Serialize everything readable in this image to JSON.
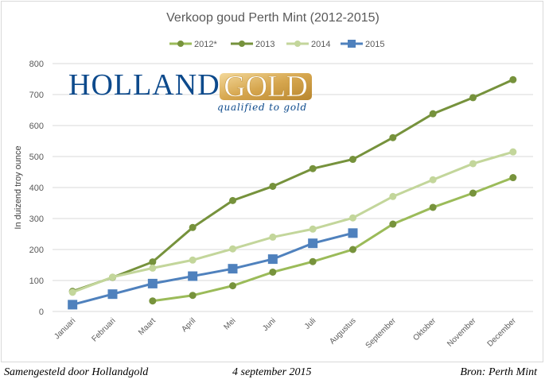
{
  "chart_data": {
    "type": "line",
    "title": "Verkoop goud Perth Mint (2012-2015)",
    "xlabel": "",
    "ylabel": "In duizend troy ounce",
    "ylim": [
      0,
      800
    ],
    "yticks": [
      0,
      100,
      200,
      300,
      400,
      500,
      600,
      700,
      800
    ],
    "grid": true,
    "legend_position": "top",
    "categories": [
      "Januari",
      "Februari",
      "Maart",
      "April",
      "Mei",
      "Juni",
      "Juli",
      "Augustus",
      "September",
      "Oktober",
      "November",
      "December"
    ],
    "series": [
      {
        "name": "2012*",
        "color": "#9bbb59",
        "marker_color": "#77933c",
        "marker": "circle",
        "values": [
          null,
          null,
          34,
          52,
          83,
          127,
          161,
          200,
          282,
          336,
          382,
          432
        ]
      },
      {
        "name": "2013",
        "color": "#76923c",
        "marker_color": "#76923c",
        "marker": "circle",
        "values": [
          65,
          110,
          160,
          271,
          358,
          404,
          461,
          491,
          561,
          638,
          690,
          748
        ]
      },
      {
        "name": "2014",
        "color": "#c3d69b",
        "marker_color": "#c3d69b",
        "marker": "circle",
        "values": [
          62,
          111,
          140,
          166,
          202,
          240,
          266,
          302,
          371,
          425,
          477,
          515
        ]
      },
      {
        "name": "2015",
        "color": "#4f81bd",
        "marker_color": "#4f81bd",
        "marker": "square",
        "values": [
          22,
          56,
          90,
          114,
          138,
          169,
          220,
          253,
          null,
          null,
          null,
          null
        ]
      }
    ]
  },
  "logo": {
    "word1": "HOLLAND",
    "word2": "GOLD",
    "tagline": "qualified to gold"
  },
  "footer": {
    "left": "Samengesteld door Hollandgold",
    "center": "4 september 2015",
    "right": "Bron: Perth Mint"
  }
}
